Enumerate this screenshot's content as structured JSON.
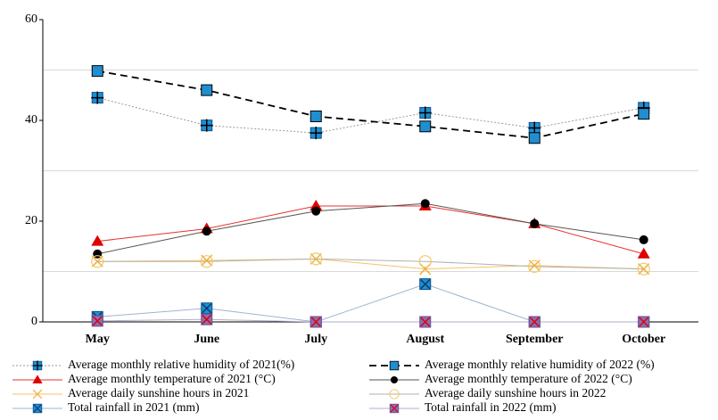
{
  "chart_data": {
    "type": "line",
    "categories": [
      "May",
      "June",
      "July",
      "August",
      "September",
      "October"
    ],
    "ylim": [
      0,
      60
    ],
    "yticks": [
      0,
      20,
      40,
      60
    ],
    "ygrid": [
      10,
      30,
      50
    ],
    "series": [
      {
        "name": "Average monthly relative humidity of 2021(%)",
        "color": "#9a9a9a",
        "dash": "2,2",
        "marker": "plus-square",
        "marker_color": "#1f8fd1",
        "values": [
          44.5,
          39,
          37.5,
          41.5,
          38.5,
          42.5
        ]
      },
      {
        "name": "Average monthly relative humidity of 2022 (%)",
        "color": "#000000",
        "dash": "8,5",
        "marker": "square",
        "marker_color": "#1f8fd1",
        "values": [
          49.8,
          46,
          40.8,
          38.8,
          36.5,
          41.3
        ]
      },
      {
        "name": "Average monthly temperature of 2021 (°C)",
        "color": "#e83030",
        "dash": "none",
        "marker": "triangle",
        "marker_color": "#e00000",
        "values": [
          16,
          18.5,
          23,
          23,
          19.5,
          13.5
        ]
      },
      {
        "name": "Average monthly temperature of 2022 (°C)",
        "color": "#555555",
        "dash": "none",
        "marker": "circle",
        "marker_color": "#000000",
        "values": [
          13.5,
          18,
          22,
          23.5,
          19.5,
          16.3
        ]
      },
      {
        "name": "Average daily sunshine hours in 2021",
        "color": "#f2c46a",
        "dash": "none",
        "marker": "x",
        "marker_color": "#f0b040",
        "values": [
          12,
          12.2,
          12.5,
          10.5,
          11.2,
          10.5
        ]
      },
      {
        "name": "Average daily sunshine hours in 2022",
        "color": "#b0b0b0",
        "dash": "none",
        "marker": "open-circle",
        "marker_color": "#f5c860",
        "values": [
          12,
          12,
          12.5,
          12,
          11,
          10.5
        ]
      },
      {
        "name": "Total rainfall in 2021 (mm)",
        "color": "#9fb3cf",
        "dash": "none",
        "marker": "x-square",
        "marker_color": "#1f8fd1",
        "values": [
          1,
          2.7,
          0,
          7.5,
          0,
          0
        ]
      },
      {
        "name": "Total rainfall in 2022 (mm)",
        "color": "#b0b0c8",
        "dash": "none",
        "marker": "red-x-square",
        "marker_color": "#8b6fb5",
        "values": [
          0.2,
          0.5,
          0,
          0,
          0,
          0
        ]
      }
    ]
  }
}
